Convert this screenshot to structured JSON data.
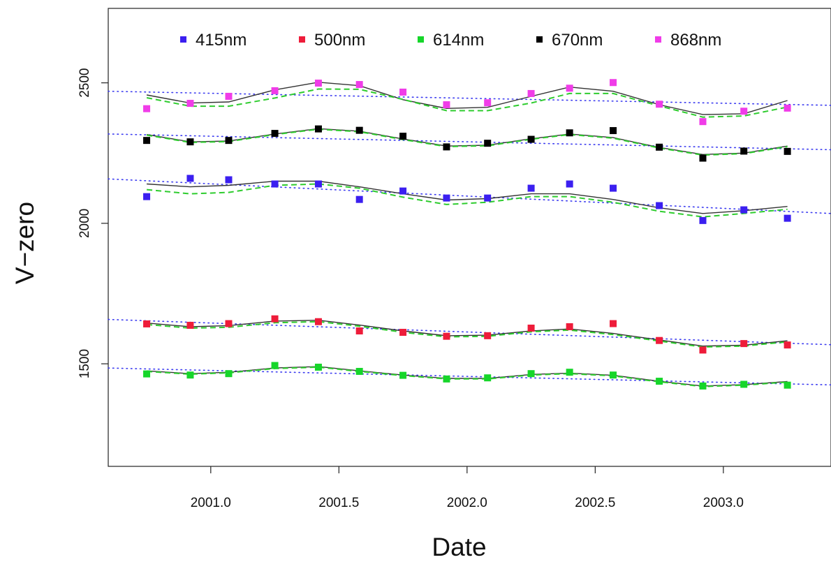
{
  "chart_data": {
    "type": "scatter",
    "title": "",
    "xlabel": "Date",
    "ylabel": "V−zero",
    "xlim": [
      2000.6,
      2003.42
    ],
    "ylim": [
      1135,
      2765
    ],
    "x_ticks": [
      2001.0,
      2001.5,
      2002.0,
      2002.5,
      2003.0
    ],
    "x_tick_labels": [
      "2001.0",
      "2001.5",
      "2002.0",
      "2002.5",
      "2003.0"
    ],
    "y_ticks": [
      1500,
      2000,
      2500
    ],
    "y_tick_labels": [
      "1500",
      "2000",
      "2500"
    ],
    "grid": false,
    "legend_position": "top",
    "x": [
      2000.75,
      2000.92,
      2001.07,
      2001.25,
      2001.42,
      2001.58,
      2001.75,
      2001.92,
      2002.08,
      2002.25,
      2002.4,
      2002.57,
      2002.75,
      2002.92,
      2003.08,
      2003.25
    ],
    "series": [
      {
        "name": "415nm",
        "color": "#3b1ff0",
        "points": [
          2095,
          2160,
          2155,
          2140,
          2140,
          2085,
          2115,
          2090,
          2090,
          2125,
          2140,
          2125,
          2063,
          2010,
          2048,
          2018
        ],
        "fit_solid": [
          2140,
          2130,
          2135,
          2150,
          2150,
          2130,
          2105,
          2083,
          2088,
          2105,
          2105,
          2085,
          2055,
          2035,
          2045,
          2060
        ],
        "fit_dashed": [
          2120,
          2105,
          2110,
          2135,
          2140,
          2125,
          2093,
          2067,
          2075,
          2095,
          2095,
          2075,
          2043,
          2023,
          2035,
          2050
        ],
        "trend": [
          2158,
          2035
        ]
      },
      {
        "name": "500nm",
        "color": "#ee1c3a",
        "points": [
          1642,
          1637,
          1643,
          1660,
          1650,
          1617,
          1612,
          1598,
          1600,
          1627,
          1632,
          1643,
          1583,
          1549,
          1572,
          1567
        ],
        "fit_solid": [
          1645,
          1632,
          1636,
          1652,
          1655,
          1638,
          1617,
          1600,
          1602,
          1617,
          1624,
          1608,
          1585,
          1563,
          1566,
          1582
        ],
        "fit_dashed": [
          1640,
          1627,
          1630,
          1646,
          1650,
          1634,
          1612,
          1596,
          1598,
          1614,
          1620,
          1604,
          1581,
          1560,
          1563,
          1578
        ],
        "trend": [
          1658,
          1568
        ]
      },
      {
        "name": "614nm",
        "color": "#16d62a",
        "points": [
          1464,
          1460,
          1465,
          1494,
          1488,
          1473,
          1459,
          1446,
          1450,
          1465,
          1470,
          1460,
          1438,
          1421,
          1427,
          1424
        ],
        "fit_solid": [
          1475,
          1465,
          1470,
          1485,
          1490,
          1475,
          1460,
          1448,
          1448,
          1462,
          1467,
          1459,
          1438,
          1421,
          1426,
          1437
        ],
        "fit_dashed": [
          1473,
          1463,
          1468,
          1483,
          1488,
          1473,
          1458,
          1446,
          1446,
          1460,
          1465,
          1457,
          1436,
          1419,
          1424,
          1435
        ],
        "trend": [
          1485,
          1425
        ]
      },
      {
        "name": "670nm",
        "color": "#000000",
        "points": [
          2295,
          2290,
          2295,
          2320,
          2336,
          2331,
          2310,
          2272,
          2285,
          2299,
          2322,
          2330,
          2271,
          2232,
          2257,
          2256
        ],
        "fit_solid": [
          2316,
          2290,
          2293,
          2318,
          2337,
          2328,
          2300,
          2275,
          2278,
          2301,
          2318,
          2305,
          2270,
          2245,
          2250,
          2275
        ],
        "fit_dashed": [
          2314,
          2288,
          2291,
          2316,
          2335,
          2326,
          2298,
          2273,
          2276,
          2299,
          2316,
          2303,
          2268,
          2243,
          2248,
          2273
        ],
        "trend": [
          2318,
          2262
        ]
      },
      {
        "name": "868nm",
        "color": "#f03ce8",
        "points": [
          2408,
          2427,
          2452,
          2472,
          2499,
          2494,
          2467,
          2422,
          2429,
          2462,
          2481,
          2501,
          2424,
          2362,
          2399,
          2410
        ],
        "fit_solid": [
          2457,
          2428,
          2432,
          2475,
          2502,
          2490,
          2440,
          2409,
          2413,
          2452,
          2485,
          2470,
          2422,
          2387,
          2390,
          2437
        ],
        "fit_dashed": [
          2447,
          2417,
          2417,
          2446,
          2478,
          2477,
          2441,
          2401,
          2401,
          2428,
          2462,
          2462,
          2418,
          2378,
          2382,
          2414
        ],
        "trend": [
          2470,
          2420
        ]
      }
    ]
  }
}
